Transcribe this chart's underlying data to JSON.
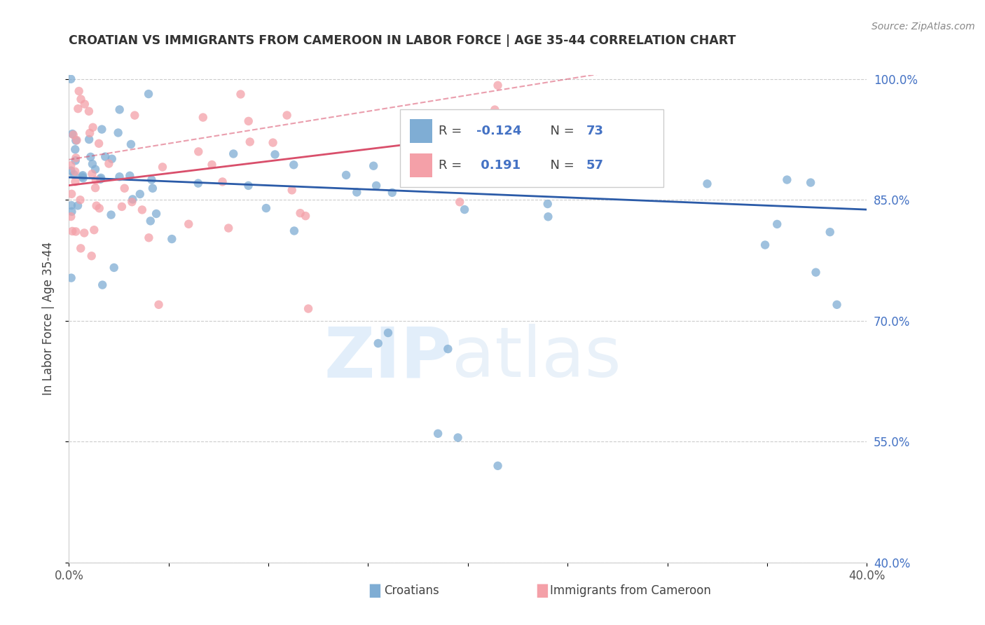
{
  "title": "CROATIAN VS IMMIGRANTS FROM CAMEROON IN LABOR FORCE | AGE 35-44 CORRELATION CHART",
  "source": "Source: ZipAtlas.com",
  "ylabel": "In Labor Force | Age 35-44",
  "blue_label": "Croatians",
  "pink_label": "Immigrants from Cameroon",
  "blue_R": -0.124,
  "blue_N": 73,
  "pink_R": 0.191,
  "pink_N": 57,
  "x_min": 0.0,
  "x_max": 0.4,
  "y_min": 0.4,
  "y_max": 1.005,
  "y_ticks": [
    0.4,
    0.55,
    0.7,
    0.85,
    1.0
  ],
  "y_tick_labels": [
    "40.0%",
    "55.0%",
    "70.0%",
    "85.0%",
    "100.0%"
  ],
  "blue_color": "#7fadd4",
  "pink_color": "#f4a0a8",
  "blue_line_color": "#2B5BA8",
  "pink_line_color": "#D94F6B",
  "background_color": "#ffffff",
  "grid_color": "#cccccc",
  "blue_line_intercept": 0.878,
  "blue_line_slope": -0.1,
  "pink_line_intercept": 0.868,
  "pink_line_slope": 0.3,
  "pink_dashed_intercept": 0.9,
  "pink_dashed_slope": 0.4
}
